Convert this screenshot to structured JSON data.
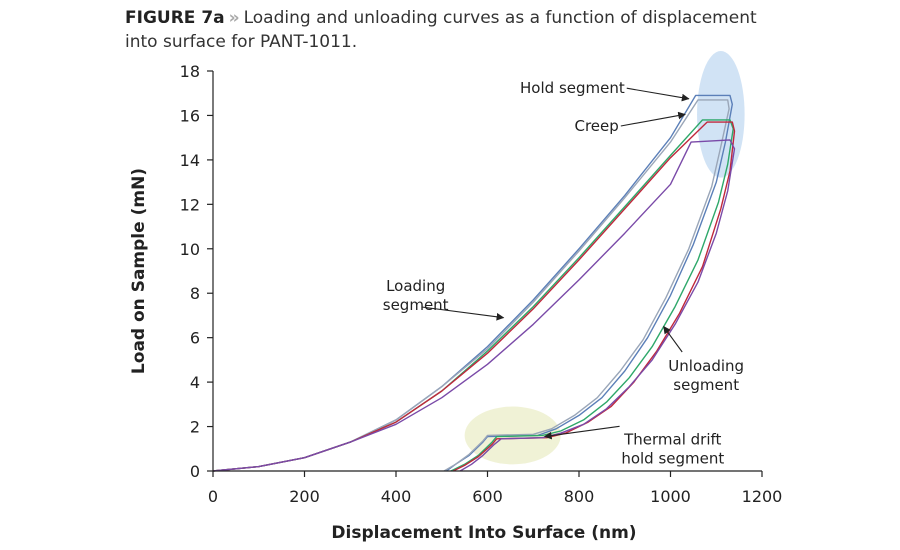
{
  "caption": {
    "figure_label": "FIGURE 7a",
    "separator": "»",
    "text": "Loading and unloading curves as a function of displacement into surface for PANT-1011."
  },
  "chart_data": {
    "type": "line",
    "xlabel": "Displacement Into Surface (nm)",
    "ylabel": "Load on Sample (mN)",
    "xlim": [
      0,
      1200
    ],
    "ylim": [
      0,
      18
    ],
    "xticks": [
      0,
      200,
      400,
      600,
      800,
      1000,
      1200
    ],
    "yticks": [
      0,
      2,
      4,
      6,
      8,
      10,
      12,
      14,
      16,
      18
    ],
    "grid": false,
    "legend": "none",
    "series": [
      {
        "color": "#5b7fb8",
        "x": [
          0,
          100,
          200,
          300,
          400,
          500,
          600,
          700,
          800,
          900,
          1000,
          1055,
          1130,
          1135,
          1120,
          1100,
          1050,
          1000,
          950,
          900,
          850,
          800,
          750,
          710,
          600,
          590,
          560,
          530,
          510
        ],
        "y": [
          0,
          0.2,
          0.6,
          1.3,
          2.3,
          3.8,
          5.6,
          7.7,
          10.0,
          12.4,
          15.0,
          16.9,
          16.9,
          16.5,
          14.8,
          13.0,
          10.2,
          7.9,
          6.0,
          4.5,
          3.3,
          2.5,
          1.9,
          1.6,
          1.55,
          1.3,
          0.7,
          0.3,
          0
        ]
      },
      {
        "color": "#9aa6b8",
        "x": [
          0,
          100,
          200,
          300,
          400,
          500,
          600,
          700,
          800,
          900,
          1000,
          1060,
          1125,
          1128,
          1110,
          1090,
          1040,
          990,
          940,
          890,
          840,
          790,
          740,
          700,
          600,
          590,
          560,
          530,
          505
        ],
        "y": [
          0,
          0.2,
          0.6,
          1.3,
          2.3,
          3.8,
          5.5,
          7.6,
          9.9,
          12.3,
          14.8,
          16.7,
          16.7,
          16.3,
          14.6,
          12.8,
          10.0,
          7.8,
          5.9,
          4.5,
          3.3,
          2.5,
          1.9,
          1.65,
          1.6,
          1.35,
          0.75,
          0.3,
          0
        ]
      },
      {
        "color": "#2ea86a",
        "x": [
          0,
          100,
          200,
          300,
          400,
          500,
          600,
          700,
          800,
          900,
          1000,
          1070,
          1130,
          1137,
          1125,
          1105,
          1060,
          1010,
          960,
          910,
          860,
          810,
          760,
          720,
          620,
          610,
          580,
          550,
          520
        ],
        "y": [
          0,
          0.2,
          0.6,
          1.3,
          2.2,
          3.6,
          5.4,
          7.4,
          9.6,
          11.9,
          14.2,
          15.8,
          15.8,
          15.4,
          13.8,
          12.1,
          9.5,
          7.4,
          5.6,
          4.2,
          3.1,
          2.3,
          1.8,
          1.6,
          1.55,
          1.3,
          0.7,
          0.3,
          0
        ]
      },
      {
        "color": "#c0283c",
        "x": [
          0,
          100,
          200,
          300,
          400,
          500,
          600,
          700,
          800,
          900,
          1000,
          1080,
          1135,
          1140,
          1130,
          1110,
          1070,
          1020,
          970,
          920,
          870,
          820,
          770,
          730,
          620,
          610,
          580,
          550,
          525
        ],
        "y": [
          0,
          0.2,
          0.6,
          1.3,
          2.2,
          3.6,
          5.3,
          7.3,
          9.5,
          11.8,
          14.1,
          15.7,
          15.7,
          15.3,
          13.5,
          11.8,
          9.2,
          7.1,
          5.4,
          4.0,
          2.9,
          2.2,
          1.7,
          1.5,
          1.45,
          1.2,
          0.65,
          0.25,
          0
        ]
      },
      {
        "color": "#7a4aa8",
        "x": [
          0,
          100,
          200,
          300,
          400,
          500,
          600,
          700,
          800,
          900,
          1000,
          1045,
          1130,
          1140,
          1125,
          1100,
          1060,
          1010,
          960,
          910,
          860,
          810,
          760,
          720,
          630,
          615,
          590,
          565,
          540
        ],
        "y": [
          0,
          0.2,
          0.6,
          1.3,
          2.1,
          3.3,
          4.8,
          6.6,
          8.6,
          10.7,
          12.9,
          14.8,
          14.9,
          14.5,
          12.6,
          10.7,
          8.5,
          6.6,
          5.0,
          3.8,
          2.8,
          2.1,
          1.7,
          1.5,
          1.45,
          1.2,
          0.7,
          0.3,
          0
        ]
      }
    ],
    "annotations": [
      {
        "lines": [
          "Hold segment"
        ],
        "text_at": [
          900,
          17.0
        ],
        "arrow_to": [
          1040,
          16.75
        ],
        "anchor": "end"
      },
      {
        "lines": [
          "Creep"
        ],
        "text_at": [
          887,
          15.3
        ],
        "arrow_to": [
          1032,
          16.05
        ],
        "anchor": "end"
      },
      {
        "lines": [
          "Loading",
          "segment"
        ],
        "text_at": [
          443,
          8.1
        ],
        "arrow_to": [
          635,
          6.9
        ],
        "anchor": "middle"
      },
      {
        "lines": [
          "Unloading",
          "segment"
        ],
        "text_at": [
          1078,
          4.5
        ],
        "arrow_to": [
          985,
          6.5
        ],
        "anchor": "middle"
      },
      {
        "lines": [
          "Thermal drift",
          "hold segment"
        ],
        "text_at": [
          1005,
          1.2
        ],
        "arrow_to": [
          725,
          1.55
        ],
        "anchor": "middle"
      }
    ],
    "highlights": [
      {
        "cx": 1110,
        "cy": 16.05,
        "rx": 52,
        "ry": 2.85,
        "color": "#c9def3"
      },
      {
        "cx": 655,
        "cy": 1.6,
        "rx": 105,
        "ry": 1.3,
        "color": "#edf0cf"
      }
    ]
  }
}
